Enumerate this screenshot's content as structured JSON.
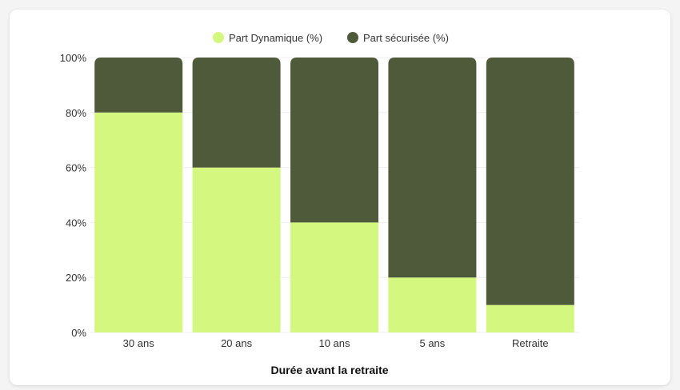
{
  "chart_data": {
    "type": "bar",
    "stacked": true,
    "categories": [
      "30 ans",
      "20 ans",
      "10 ans",
      "5 ans",
      "Retraite"
    ],
    "series": [
      {
        "name": "Part Dynamique (%)",
        "values": [
          80,
          60,
          40,
          20,
          10
        ],
        "color": "#d3f77f"
      },
      {
        "name": "Part sécurisée (%)",
        "values": [
          20,
          40,
          60,
          80,
          90
        ],
        "color": "#4f5a3b"
      }
    ],
    "title": "",
    "xlabel": "Durée avant la retraite",
    "ylabel": "",
    "ylim": [
      0,
      100
    ],
    "yticks": [
      "0%",
      "20%",
      "40%",
      "60%",
      "80%",
      "100%"
    ],
    "grid": true,
    "legend": "top-center"
  }
}
